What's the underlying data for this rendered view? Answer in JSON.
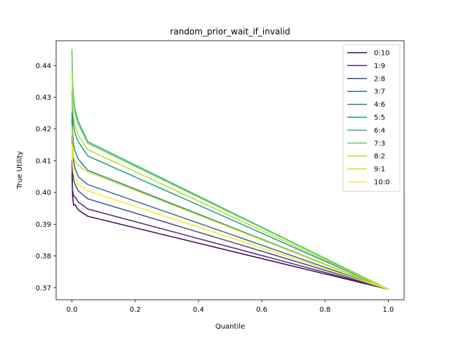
{
  "chart_data": {
    "type": "line",
    "title": "random_prior_wait_if_invalid",
    "xlabel": "Quantile",
    "ylabel": "True Utility",
    "xlim": [
      -0.05,
      1.05
    ],
    "ylim": [
      0.3662,
      0.4478
    ],
    "xticks": [
      0.0,
      0.2,
      0.4,
      0.6,
      0.8,
      1.0
    ],
    "xtick_labels": [
      "0.0",
      "0.2",
      "0.4",
      "0.6",
      "0.8",
      "1.0"
    ],
    "yticks": [
      0.37,
      0.38,
      0.39,
      0.4,
      0.41,
      0.42,
      0.43,
      0.44
    ],
    "ytick_labels": [
      "0.37",
      "0.38",
      "0.39",
      "0.40",
      "0.41",
      "0.42",
      "0.43",
      "0.44"
    ],
    "grid": false,
    "legend_position": "top-right",
    "series": [
      {
        "name": "0:10",
        "color": "#440154",
        "x": [
          0,
          0.002,
          0.005,
          0.01,
          0.02,
          0.05,
          1.0
        ],
        "y": [
          0.406,
          0.399,
          0.396,
          0.3962,
          0.3945,
          0.3925,
          0.3695
        ]
      },
      {
        "name": "1:9",
        "color": "#482878",
        "x": [
          0,
          0.002,
          0.005,
          0.01,
          0.02,
          0.05,
          1.0
        ],
        "y": [
          0.41,
          0.401,
          0.399,
          0.3985,
          0.397,
          0.3948,
          0.3695
        ]
      },
      {
        "name": "2:8",
        "color": "#3e4a89",
        "x": [
          0,
          0.002,
          0.005,
          0.01,
          0.02,
          0.05,
          1.0
        ],
        "y": [
          0.418,
          0.408,
          0.404,
          0.4025,
          0.4005,
          0.398,
          0.3695
        ]
      },
      {
        "name": "3:7",
        "color": "#31688e",
        "x": [
          0,
          0.002,
          0.005,
          0.01,
          0.02,
          0.05,
          1.0
        ],
        "y": [
          0.423,
          0.415,
          0.41,
          0.4075,
          0.405,
          0.4025,
          0.3695
        ]
      },
      {
        "name": "4:6",
        "color": "#26828e",
        "x": [
          0,
          0.002,
          0.005,
          0.01,
          0.02,
          0.05,
          1.0
        ],
        "y": [
          0.425,
          0.419,
          0.415,
          0.413,
          0.4105,
          0.407,
          0.3695
        ]
      },
      {
        "name": "5:5",
        "color": "#1f9e89",
        "x": [
          0,
          0.002,
          0.005,
          0.01,
          0.02,
          0.05,
          1.0
        ],
        "y": [
          0.432,
          0.425,
          0.421,
          0.4185,
          0.416,
          0.4115,
          0.3695
        ]
      },
      {
        "name": "6:4",
        "color": "#35b779",
        "x": [
          0,
          0.002,
          0.005,
          0.01,
          0.02,
          0.05,
          1.0
        ],
        "y": [
          0.444,
          0.435,
          0.43,
          0.426,
          0.4225,
          0.416,
          0.3695
        ]
      },
      {
        "name": "7:3",
        "color": "#6ece58",
        "x": [
          0,
          0.002,
          0.005,
          0.01,
          0.02,
          0.05,
          1.0
        ],
        "y": [
          0.445,
          0.434,
          0.429,
          0.425,
          0.4215,
          0.4155,
          0.3695
        ]
      },
      {
        "name": "8:2",
        "color": "#b5de2b",
        "x": [
          0,
          0.002,
          0.005,
          0.01,
          0.02,
          0.05,
          1.0
        ],
        "y": [
          0.438,
          0.429,
          0.424,
          0.421,
          0.418,
          0.4135,
          0.3695
        ]
      },
      {
        "name": "9:1",
        "color": "#c8e020",
        "x": [
          0,
          0.002,
          0.005,
          0.01,
          0.02,
          0.05,
          1.0
        ],
        "y": [
          0.421,
          0.415,
          0.411,
          0.41,
          0.4085,
          0.4065,
          0.3695
        ]
      },
      {
        "name": "10:0",
        "color": "#fde725",
        "x": [
          0,
          0.002,
          0.005,
          0.01,
          0.02,
          0.05,
          1.0
        ],
        "y": [
          0.415,
          0.409,
          0.406,
          0.4045,
          0.4025,
          0.4005,
          0.3695
        ]
      }
    ]
  }
}
